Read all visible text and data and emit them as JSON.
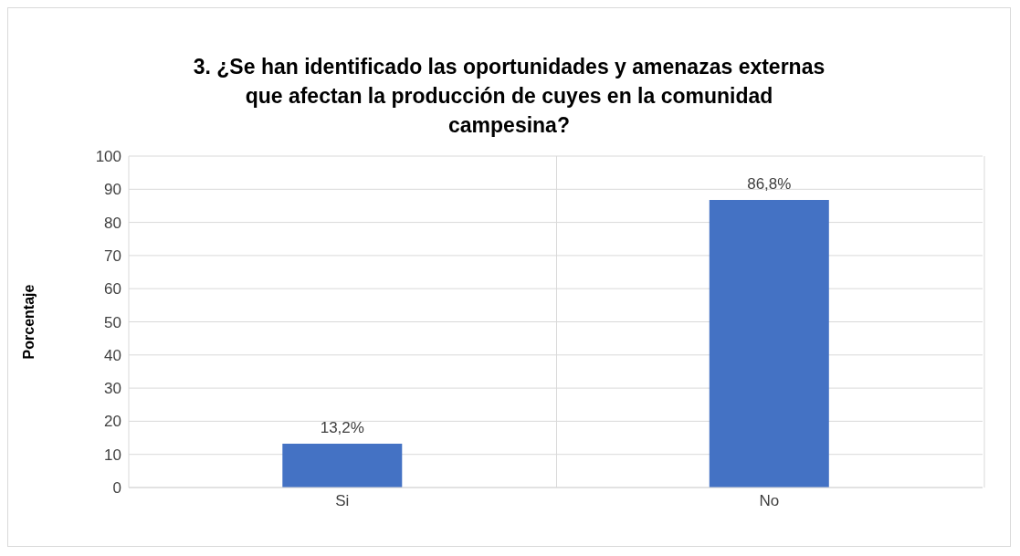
{
  "chart_data": {
    "type": "bar",
    "title": "3. ¿Se han identificado las oportunidades y amenazas externas que afectan la producción de cuyes en la comunidad campesina?",
    "ylabel": "Porcentaje",
    "categories": [
      "Si",
      "No"
    ],
    "values": [
      13.2,
      86.8
    ],
    "value_labels": [
      "13,2%",
      "86,8%"
    ],
    "color": "#4472c4",
    "ylim": [
      0,
      100
    ],
    "yticks": [
      0,
      10,
      20,
      30,
      40,
      50,
      60,
      70,
      80,
      90,
      100
    ],
    "grid": true,
    "legend": false
  }
}
